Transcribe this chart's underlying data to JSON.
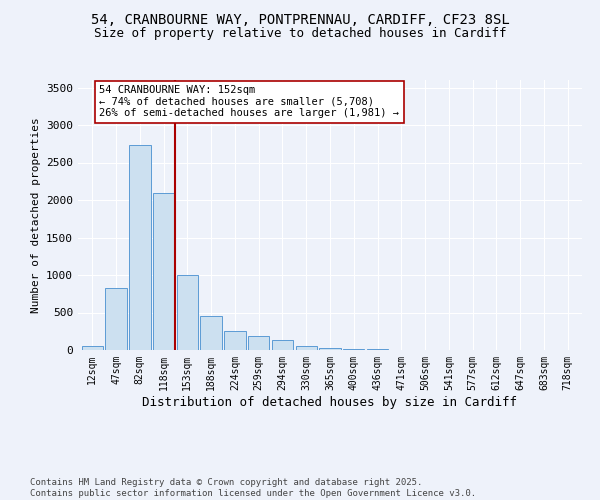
{
  "title1": "54, CRANBOURNE WAY, PONTPRENNAU, CARDIFF, CF23 8SL",
  "title2": "Size of property relative to detached houses in Cardiff",
  "xlabel": "Distribution of detached houses by size in Cardiff",
  "ylabel": "Number of detached properties",
  "categories": [
    "12sqm",
    "47sqm",
    "82sqm",
    "118sqm",
    "153sqm",
    "188sqm",
    "224sqm",
    "259sqm",
    "294sqm",
    "330sqm",
    "365sqm",
    "400sqm",
    "436sqm",
    "471sqm",
    "506sqm",
    "541sqm",
    "577sqm",
    "612sqm",
    "647sqm",
    "683sqm",
    "718sqm"
  ],
  "values": [
    60,
    830,
    2730,
    2100,
    1000,
    460,
    255,
    190,
    130,
    55,
    30,
    20,
    10,
    5,
    4,
    3,
    2,
    2,
    1,
    1,
    1
  ],
  "bar_color": "#cce0f0",
  "bar_edge_color": "#5b9bd5",
  "property_bin_index": 3.5,
  "annotation_title": "54 CRANBOURNE WAY: 152sqm",
  "annotation_line1": "← 74% of detached houses are smaller (5,708)",
  "annotation_line2": "26% of semi-detached houses are larger (1,981) →",
  "vline_color": "#aa0000",
  "annotation_box_color": "#ffffff",
  "annotation_box_edge": "#aa0000",
  "ylim": [
    0,
    3600
  ],
  "yticks": [
    0,
    500,
    1000,
    1500,
    2000,
    2500,
    3000,
    3500
  ],
  "footer1": "Contains HM Land Registry data © Crown copyright and database right 2025.",
  "footer2": "Contains public sector information licensed under the Open Government Licence v3.0.",
  "background_color": "#eef2fa"
}
